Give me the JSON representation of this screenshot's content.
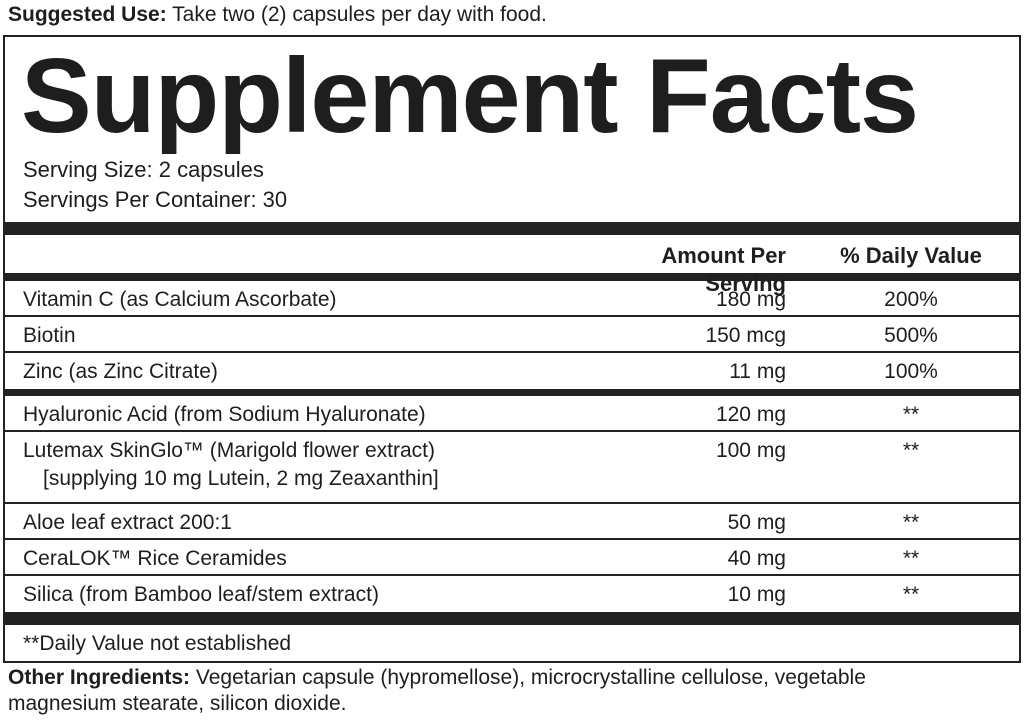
{
  "suggested_use": {
    "label": "Suggested Use:",
    "text": "Take two (2) capsules per day with food."
  },
  "panel": {
    "title": "Supplement Facts",
    "serving_size": "Serving Size: 2 capsules",
    "servings_per_container": "Servings Per Container: 30",
    "headers": {
      "amount": "Amount Per Serving",
      "daily_value": "% Daily Value"
    },
    "groups": [
      [
        {
          "name": "Vitamin C (as Calcium Ascorbate)",
          "amount": "180 mg",
          "daily_value": "200%"
        },
        {
          "name": "Biotin",
          "amount": "150 mcg",
          "daily_value": "500%"
        },
        {
          "name": "Zinc (as Zinc Citrate)",
          "amount": "11 mg",
          "daily_value": "100%"
        }
      ],
      [
        {
          "name": "Hyaluronic Acid (from Sodium Hyaluronate)",
          "amount": "120 mg",
          "daily_value": "**"
        },
        {
          "name": "Lutemax SkinGlo™ (Marigold flower extract)",
          "note": "[supplying 10 mg Lutein, 2 mg Zeaxanthin]",
          "amount": "100 mg",
          "daily_value": "**"
        },
        {
          "name": "Aloe leaf extract 200:1",
          "amount": "50 mg",
          "daily_value": "**"
        },
        {
          "name": "CeraLOK™ Rice Ceramides",
          "amount": "40 mg",
          "daily_value": "**"
        },
        {
          "name": "Silica (from Bamboo leaf/stem extract)",
          "amount": "10 mg",
          "daily_value": "**"
        }
      ]
    ],
    "footnote": "**Daily Value not established"
  },
  "other_ingredients": {
    "label": "Other Ingredients:",
    "text": "Vegetarian capsule (hypromellose), microcrystalline cellulose, vegetable magnesium stearate, silicon dioxide."
  }
}
